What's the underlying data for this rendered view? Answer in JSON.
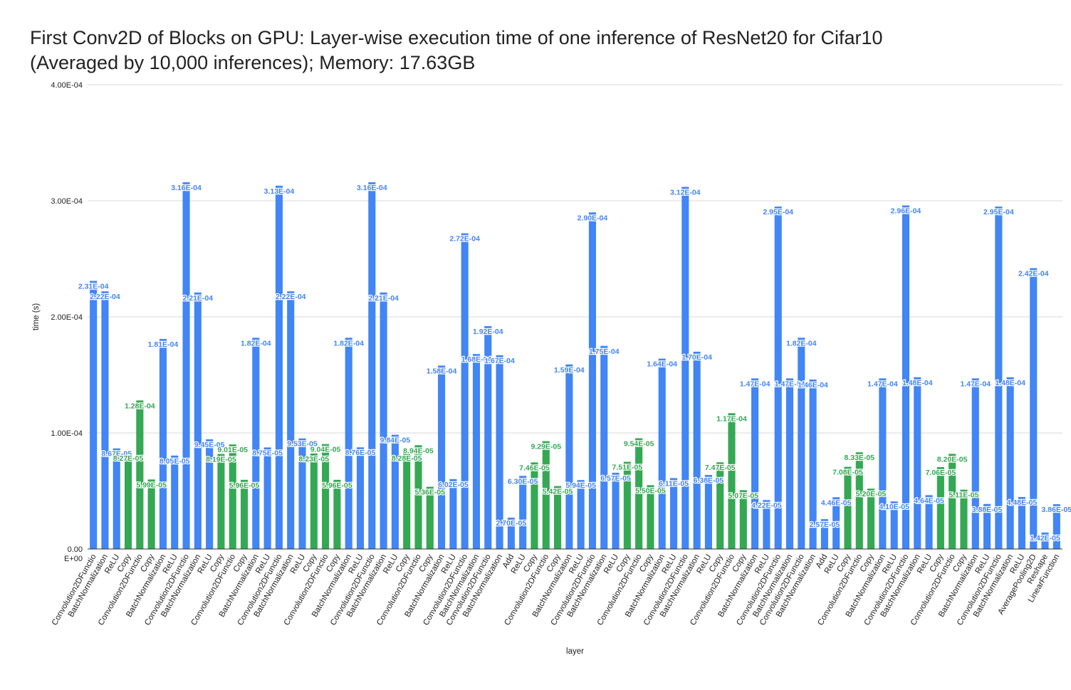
{
  "chart_data": {
    "type": "bar",
    "title_lines": [
      "First Conv2D of Blocks on GPU: Layer-wise execution time of one inference of ResNet20 for Cifar10",
      "(Averaged by 10,000 inferences); Memory: 17.63GB"
    ],
    "xlabel": "layer",
    "ylabel": "time (s)",
    "ylim": [
      0,
      0.0004
    ],
    "yticks": [
      {
        "value": 0,
        "label": "0.00\nE+00"
      },
      {
        "value": 0.0001,
        "label": "1.00E-04"
      },
      {
        "value": 0.0002,
        "label": "2.00E-04"
      },
      {
        "value": 0.0003,
        "label": "3.00E-04"
      },
      {
        "value": 0.0004,
        "label": "4.00E-04"
      }
    ],
    "grid": true,
    "legend": "none",
    "colors": {
      "blue": "#4285f4",
      "green": "#34a853",
      "grid": "#d9d9d9",
      "axis": "#333333"
    },
    "bars": [
      {
        "category": "Convolution2DFunctio",
        "value": 0.000231,
        "label": "2.31E-04",
        "color": "blue"
      },
      {
        "category": "BatchNormalization",
        "value": 0.000222,
        "label": "2.22E-04",
        "color": "blue"
      },
      {
        "category": "ReLU",
        "value": 8.67e-05,
        "label": "8.67E-05",
        "color": "blue"
      },
      {
        "category": "Copy",
        "value": 8.27e-05,
        "label": "8.27E-05",
        "color": "green"
      },
      {
        "category": "Convolution2DFunctio",
        "value": 0.000128,
        "label": "1.28E-04",
        "color": "green"
      },
      {
        "category": "Copy",
        "value": 5.99e-05,
        "label": "5.99E-05",
        "color": "green"
      },
      {
        "category": "BatchNormalization",
        "value": 0.000181,
        "label": "1.81E-04",
        "color": "blue"
      },
      {
        "category": "ReLU",
        "value": 8.05e-05,
        "label": "8.05E-05",
        "color": "blue"
      },
      {
        "category": "Convolution2DFunctio",
        "value": 0.000316,
        "label": "3.16E-04",
        "color": "blue"
      },
      {
        "category": "BatchNormalization",
        "value": 0.000221,
        "label": "2.21E-04",
        "color": "blue"
      },
      {
        "category": "ReLU",
        "value": 9.45e-05,
        "label": "9.45E-05",
        "color": "blue"
      },
      {
        "category": "Copy",
        "value": 8.19e-05,
        "label": "8.19E-05",
        "color": "green"
      },
      {
        "category": "Convolution2DFunctio",
        "value": 9.01e-05,
        "label": "9.01E-05",
        "color": "green"
      },
      {
        "category": "Copy",
        "value": 5.96e-05,
        "label": "5.96E-05",
        "color": "green"
      },
      {
        "category": "BatchNormalization",
        "value": 0.000182,
        "label": "1.82E-04",
        "color": "blue"
      },
      {
        "category": "ReLU",
        "value": 8.75e-05,
        "label": "8.75E-05",
        "color": "blue"
      },
      {
        "category": "Convolution2DFunctio",
        "value": 0.000313,
        "label": "3.13E-04",
        "color": "blue"
      },
      {
        "category": "BatchNormalization",
        "value": 0.000222,
        "label": "2.22E-04",
        "color": "blue"
      },
      {
        "category": "ReLU",
        "value": 9.53e-05,
        "label": "9.53E-05",
        "color": "blue"
      },
      {
        "category": "Copy",
        "value": 8.23e-05,
        "label": "8.23E-05",
        "color": "green"
      },
      {
        "category": "Convolution2DFunctio",
        "value": 9.04e-05,
        "label": "9.04E-05",
        "color": "green"
      },
      {
        "category": "Copy",
        "value": 5.96e-05,
        "label": "5.96E-05",
        "color": "green"
      },
      {
        "category": "BatchNormalization",
        "value": 0.000182,
        "label": "1.82E-04",
        "color": "blue"
      },
      {
        "category": "ReLU",
        "value": 8.76e-05,
        "label": "8.76E-05",
        "color": "blue"
      },
      {
        "category": "Convolution2DFunctio",
        "value": 0.000316,
        "label": "3.16E-04",
        "color": "blue"
      },
      {
        "category": "BatchNormalization",
        "value": 0.000221,
        "label": "2.21E-04",
        "color": "blue"
      },
      {
        "category": "ReLU",
        "value": 9.84e-05,
        "label": "9.84E-05",
        "color": "blue"
      },
      {
        "category": "Copy",
        "value": 8.28e-05,
        "label": "8.28E-05",
        "color": "green"
      },
      {
        "category": "Convolution2DFunctio",
        "value": 8.94e-05,
        "label": "8.94E-05",
        "color": "green"
      },
      {
        "category": "Copy",
        "value": 5.36e-05,
        "label": "5.36E-05",
        "color": "green"
      },
      {
        "category": "BatchNormalization",
        "value": 0.000158,
        "label": "1.58E-04",
        "color": "blue"
      },
      {
        "category": "ReLU",
        "value": 6.02e-05,
        "label": "6.02E-05",
        "color": "blue"
      },
      {
        "category": "Convolution2DFunctio",
        "value": 0.000272,
        "label": "2.72E-04",
        "color": "blue"
      },
      {
        "category": "BatchNormalization",
        "value": 0.000168,
        "label": "1.68E-04",
        "color": "blue"
      },
      {
        "category": "Convolution2DFunctio",
        "value": 0.000192,
        "label": "1.92E-04",
        "color": "blue"
      },
      {
        "category": "BatchNormalization",
        "value": 0.000167,
        "label": "1.67E-04",
        "color": "blue"
      },
      {
        "category": "Add",
        "value": 2.7e-05,
        "label": "2.70E-05",
        "color": "blue"
      },
      {
        "category": "ReLU",
        "value": 6.3e-05,
        "label": "6.30E-05",
        "color": "blue"
      },
      {
        "category": "Copy",
        "value": 7.46e-05,
        "label": "7.46E-05",
        "color": "green"
      },
      {
        "category": "Convolution2DFunctio",
        "value": 9.29e-05,
        "label": "9.29E-05",
        "color": "green"
      },
      {
        "category": "Copy",
        "value": 5.42e-05,
        "label": "5.42E-05",
        "color": "green"
      },
      {
        "category": "BatchNormalization",
        "value": 0.000159,
        "label": "1.59E-04",
        "color": "blue"
      },
      {
        "category": "ReLU",
        "value": 5.94e-05,
        "label": "5.94E-05",
        "color": "blue"
      },
      {
        "category": "Convolution2DFunctio",
        "value": 0.00029,
        "label": "2.90E-04",
        "color": "blue"
      },
      {
        "category": "BatchNormalization",
        "value": 0.000175,
        "label": "1.75E-04",
        "color": "blue"
      },
      {
        "category": "ReLU",
        "value": 6.57e-05,
        "label": "6.57E-05",
        "color": "blue"
      },
      {
        "category": "Copy",
        "value": 7.51e-05,
        "label": "7.51E-05",
        "color": "green"
      },
      {
        "category": "Convolution2DFunctio",
        "value": 9.54e-05,
        "label": "9.54E-05",
        "color": "green"
      },
      {
        "category": "Copy",
        "value": 5.5e-05,
        "label": "5.50E-05",
        "color": "green"
      },
      {
        "category": "BatchNormalization",
        "value": 0.000164,
        "label": "1.64E-04",
        "color": "blue"
      },
      {
        "category": "ReLU",
        "value": 6.11e-05,
        "label": "6.11E-05",
        "color": "blue"
      },
      {
        "category": "Convolution2DFunctio",
        "value": 0.000312,
        "label": "3.12E-04",
        "color": "blue"
      },
      {
        "category": "BatchNormalization",
        "value": 0.00017,
        "label": "1.70E-04",
        "color": "blue"
      },
      {
        "category": "ReLU",
        "value": 6.38e-05,
        "label": "6.38E-05",
        "color": "blue"
      },
      {
        "category": "Copy",
        "value": 7.47e-05,
        "label": "7.47E-05",
        "color": "green"
      },
      {
        "category": "Convolution2DFunctio",
        "value": 0.000117,
        "label": "1.17E-04",
        "color": "green"
      },
      {
        "category": "Copy",
        "value": 5.07e-05,
        "label": "5.07E-05",
        "color": "green"
      },
      {
        "category": "BatchNormalization",
        "value": 0.000147,
        "label": "1.47E-04",
        "color": "blue"
      },
      {
        "category": "ReLU",
        "value": 4.22e-05,
        "label": "4.22E-05",
        "color": "blue"
      },
      {
        "category": "Convolution2DFunctio",
        "value": 0.000295,
        "label": "2.95E-04",
        "color": "blue"
      },
      {
        "category": "BatchNormalization",
        "value": 0.000147,
        "label": "1.47E-04",
        "color": "blue"
      },
      {
        "category": "Convolution2DFunctio",
        "value": 0.000182,
        "label": "1.82E-04",
        "color": "blue"
      },
      {
        "category": "BatchNormalization",
        "value": 0.000146,
        "label": "1.46E-04",
        "color": "blue"
      },
      {
        "category": "Add",
        "value": 2.57e-05,
        "label": "2.57E-05",
        "color": "blue"
      },
      {
        "category": "ReLU",
        "value": 4.46e-05,
        "label": "4.46E-05",
        "color": "blue"
      },
      {
        "category": "Copy",
        "value": 7.08e-05,
        "label": "7.08E-05",
        "color": "green"
      },
      {
        "category": "Convolution2DFunctio",
        "value": 8.33e-05,
        "label": "8.33E-05",
        "color": "green"
      },
      {
        "category": "Copy",
        "value": 5.2e-05,
        "label": "5.20E-05",
        "color": "green"
      },
      {
        "category": "BatchNormalization",
        "value": 0.000147,
        "label": "1.47E-04",
        "color": "blue"
      },
      {
        "category": "ReLU",
        "value": 4.1e-05,
        "label": "4.10E-05",
        "color": "blue"
      },
      {
        "category": "Convolution2DFunctio",
        "value": 0.000296,
        "label": "2.96E-04",
        "color": "blue"
      },
      {
        "category": "BatchNormalization",
        "value": 0.000148,
        "label": "1.48E-04",
        "color": "blue"
      },
      {
        "category": "ReLU",
        "value": 4.64e-05,
        "label": "4.64E-05",
        "color": "blue"
      },
      {
        "category": "Copy",
        "value": 7.06e-05,
        "label": "7.06E-05",
        "color": "green"
      },
      {
        "category": "Convolution2DFunctio",
        "value": 8.2e-05,
        "label": "8.20E-05",
        "color": "green"
      },
      {
        "category": "Copy",
        "value": 5.11e-05,
        "label": "5.11E-05",
        "color": "green"
      },
      {
        "category": "BatchNormalization",
        "value": 0.000147,
        "label": "1.47E-04",
        "color": "blue"
      },
      {
        "category": "ReLU",
        "value": 3.88e-05,
        "label": "3.88E-05",
        "color": "blue"
      },
      {
        "category": "Convolution2DFunctio",
        "value": 0.000295,
        "label": "2.95E-04",
        "color": "blue"
      },
      {
        "category": "BatchNormalization",
        "value": 0.000148,
        "label": "1.48E-04",
        "color": "blue"
      },
      {
        "category": "ReLU",
        "value": 4.48e-05,
        "label": "4.48E-05",
        "color": "blue"
      },
      {
        "category": "AveragePooling2D",
        "value": 0.000242,
        "label": "2.42E-04",
        "color": "blue"
      },
      {
        "category": "Reshape",
        "value": 1.42e-05,
        "label": "1.42E-05",
        "color": "blue"
      },
      {
        "category": "LinearFunction",
        "value": 3.86e-05,
        "label": "3.86E-05",
        "color": "blue"
      }
    ]
  }
}
